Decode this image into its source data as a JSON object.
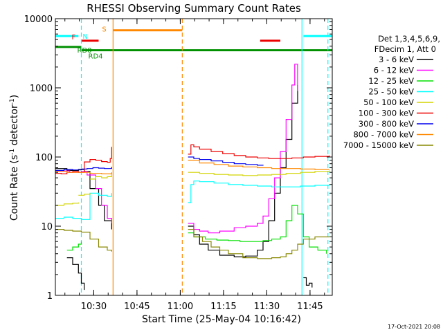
{
  "chart_data": {
    "type": "line",
    "title": "RHESSI Observing Summary Count Rates",
    "xlabel": "Start Time (25-May-04 10:16:42)",
    "ylabel": "Count Rate (s⁻¹ detector⁻¹)",
    "ylabel_parts": {
      "a": "Count Rate (s",
      "b": "-1",
      "c": " detector",
      "d": "-1",
      "e": ")"
    },
    "x_units": "minutes since 10:16:42",
    "xlim": [
      0,
      96
    ],
    "ylim": [
      1,
      10000
    ],
    "yscale": "log",
    "ytick_labels": [
      "1",
      "10",
      "100",
      "1000",
      "10000"
    ],
    "ytick_values": [
      1,
      10,
      100,
      1000,
      10000
    ],
    "xtick_labels": [
      "10:30",
      "10:45",
      "11:00",
      "11:15",
      "11:30",
      "11:45"
    ],
    "xtick_values": [
      13.3,
      28.3,
      43.3,
      58.3,
      73.3,
      88.3
    ],
    "legend": {
      "header": [
        "Det 1,3,4,5,6,9,",
        "FDecim 1, Att 0"
      ],
      "entries": [
        {
          "label": "3 - 6 keV",
          "color": "#000000"
        },
        {
          "label": "6 - 12 keV",
          "color": "#ff00ff"
        },
        {
          "label": "12 - 25 keV",
          "color": "#00e000"
        },
        {
          "label": "25 - 50 keV",
          "color": "#00ffff"
        },
        {
          "label": "50 - 100 keV",
          "color": "#d4d400"
        },
        {
          "label": "100 - 300 keV",
          "color": "#ee0000"
        },
        {
          "label": "300 - 800 keV",
          "color": "#0000ee"
        },
        {
          "label": "800 - 7000 keV",
          "color": "#ff8800"
        },
        {
          "label": "7000 - 15000 keV",
          "color": "#888800"
        }
      ]
    },
    "flags": [
      {
        "label": "N",
        "color": "#00ffff",
        "segments": [
          [
            0,
            8
          ],
          [
            86,
            96
          ]
        ],
        "level": 5600
      },
      {
        "label": "S",
        "color": "#ff8800",
        "segments": [
          [
            20,
            44
          ]
        ],
        "level": 6800
      },
      {
        "label": "F",
        "color": "#ee0000",
        "segments": [
          [
            9,
            15
          ],
          [
            71,
            78
          ]
        ],
        "level": 4800
      },
      {
        "label": "RD0",
        "color": "#009000",
        "segments": [
          [
            0,
            9
          ]
        ],
        "level": 3900
      },
      {
        "label": "RD4",
        "color": "#009000",
        "segments": [
          [
            9,
            44
          ],
          [
            44,
            48
          ],
          [
            48,
            96
          ]
        ],
        "level": 3500
      }
    ],
    "vlines": [
      {
        "x": 9,
        "color": "#00ffff",
        "style": "dashed"
      },
      {
        "x": 20,
        "color": "#ff8800",
        "style": "solid"
      },
      {
        "x": 44,
        "color": "#ff8800",
        "style": "dashed"
      },
      {
        "x": 85.5,
        "color": "#00ffff",
        "style": "solid"
      },
      {
        "x": 94.5,
        "color": "#00ffff",
        "style": "dashed"
      }
    ],
    "series": [
      {
        "name": "3 - 6 keV",
        "color": "#000000",
        "segments": [
          {
            "x": [
              0,
              4,
              8,
              10,
              12,
              15,
              17,
              19.5
            ],
            "y": [
              68,
              64,
              66,
              62,
              35,
              20,
              12,
              9
            ]
          },
          {
            "x": [
              4,
              6,
              8,
              9,
              10
            ],
            "y": [
              3.5,
              2.8,
              2.1,
              1.5,
              1.2
            ]
          },
          {
            "x": [
              46,
              48,
              50,
              53,
              57,
              62,
              66,
              70,
              72,
              74,
              76,
              78,
              80,
              82,
              84
            ],
            "y": [
              10,
              7.5,
              5.5,
              4.5,
              3.8,
              3.6,
              3.7,
              4.5,
              6,
              12,
              30,
              70,
              180,
              600,
              1100
            ]
          },
          {
            "x": [
              86,
              87,
              88,
              89
            ],
            "y": [
              1.8,
              1.4,
              1.5,
              1.3
            ]
          }
        ]
      },
      {
        "name": "6 - 12 keV",
        "color": "#ff00ff",
        "segments": [
          {
            "x": [
              0,
              5,
              9,
              11,
              14,
              16,
              18,
              19.5
            ],
            "y": [
              63,
              60,
              62,
              55,
              35,
              20,
              13,
              11
            ]
          },
          {
            "x": [
              46,
              48,
              50,
              53,
              57,
              62,
              66,
              70,
              72,
              74,
              76,
              78,
              80,
              82,
              83,
              84
            ],
            "y": [
              11,
              9,
              8.5,
              8,
              8.5,
              9.5,
              10,
              11,
              14,
              25,
              50,
              120,
              350,
              1100,
              2200,
              900
            ]
          }
        ]
      },
      {
        "name": "12 - 25 keV",
        "color": "#00e000",
        "segments": [
          {
            "x": [
              4,
              6,
              8,
              9
            ],
            "y": [
              4.5,
              5,
              5.5,
              6
            ]
          },
          {
            "x": [
              46,
              48,
              52,
              56,
              60,
              64,
              68,
              72,
              75,
              78,
              80,
              82,
              84,
              86,
              88,
              91,
              94
            ],
            "y": [
              8,
              7,
              6.5,
              6.3,
              6.2,
              6.0,
              6.0,
              6.2,
              6.5,
              7,
              12,
              20,
              15,
              7,
              5,
              4.5,
              4
            ]
          }
        ]
      },
      {
        "name": "25 - 50 keV",
        "color": "#00ffff",
        "segments": [
          {
            "x": [
              0,
              3,
              6,
              9,
              12,
              15,
              18,
              19.5
            ],
            "y": [
              13,
              13.5,
              13,
              12.5,
              30,
              28,
              27,
              30
            ]
          },
          {
            "x": [
              46,
              47,
              48,
              50,
              55,
              60,
              65,
              70,
              75,
              80,
              85,
              90,
              95
            ],
            "y": [
              22,
              40,
              45,
              44,
              42,
              40,
              39,
              38,
              37,
              37,
              38,
              39,
              40
            ]
          }
        ]
      },
      {
        "name": "50 - 100 keV",
        "color": "#d4d400",
        "segments": [
          {
            "x": [
              0,
              3,
              6,
              8
            ],
            "y": [
              20,
              21,
              21.5,
              22
            ]
          },
          {
            "x": [
              8,
              10,
              12
            ],
            "y": [
              28,
              29,
              30
            ]
          },
          {
            "x": [
              12,
              14,
              16,
              18,
              19.5
            ],
            "y": [
              48,
              52,
              50,
              52,
              60
            ]
          },
          {
            "x": [
              46,
              50,
              55,
              60,
              65,
              70,
              75,
              80,
              85,
              90,
              95
            ],
            "y": [
              60,
              58,
              56,
              55,
              54,
              55,
              56,
              58,
              60,
              62,
              64
            ]
          }
        ]
      },
      {
        "name": "100 - 300 keV",
        "color": "#ee0000",
        "segments": [
          {
            "x": [
              0,
              2,
              4,
              6,
              8,
              10,
              12,
              14,
              16,
              18,
              19,
              19.5
            ],
            "y": [
              58,
              57,
              60,
              62,
              60,
              85,
              92,
              90,
              86,
              84,
              95,
              140
            ]
          },
          {
            "x": [
              46,
              47,
              48,
              50,
              54,
              58,
              62,
              66,
              70,
              74,
              78,
              82,
              86,
              90,
              95
            ],
            "y": [
              110,
              150,
              140,
              130,
              120,
              112,
              105,
              100,
              97,
              95,
              95,
              97,
              100,
              102,
              105
            ]
          }
        ]
      },
      {
        "name": "300 - 800 keV",
        "color": "#0000ee",
        "segments": [
          {
            "x": [
              0,
              3,
              6,
              9,
              11,
              13,
              15,
              17,
              19.5
            ],
            "y": [
              64,
              66,
              65,
              67,
              68,
              70,
              69,
              68,
              72
            ]
          },
          {
            "x": [
              46,
              48,
              50,
              54,
              58,
              62,
              66,
              70,
              72
            ],
            "y": [
              100,
              95,
              92,
              88,
              84,
              80,
              78,
              76,
              75
            ]
          }
        ]
      },
      {
        "name": "800 - 7000 keV",
        "color": "#ff8800",
        "segments": [
          {
            "x": [
              0,
              4,
              8,
              12,
              16,
              19.5
            ],
            "y": [
              62,
              60,
              60,
              58,
              57,
              60
            ]
          },
          {
            "x": [
              46,
              50,
              55,
              60,
              65,
              70,
              75,
              80,
              85,
              90,
              95
            ],
            "y": [
              90,
              82,
              78,
              74,
              72,
              70,
              68,
              68,
              67,
              66,
              66
            ]
          }
        ]
      },
      {
        "name": "7000 - 15000 keV",
        "color": "#888800",
        "segments": [
          {
            "x": [
              0,
              3,
              6,
              9,
              12,
              15,
              18,
              19.5
            ],
            "y": [
              9,
              8.7,
              8.5,
              8.2,
              6.5,
              5,
              4.5,
              4.3
            ]
          },
          {
            "x": [
              46,
              48,
              51,
              54,
              57,
              60,
              65,
              70,
              75,
              78,
              80,
              82,
              84,
              86,
              90,
              95
            ],
            "y": [
              9,
              7,
              6,
              5,
              4.5,
              4.0,
              3.5,
              3.4,
              3.5,
              3.6,
              4,
              4.5,
              5.5,
              6.5,
              7,
              7
            ]
          }
        ]
      }
    ]
  },
  "footer": {
    "date_stamp": "17-Oct-2021 20:08"
  }
}
